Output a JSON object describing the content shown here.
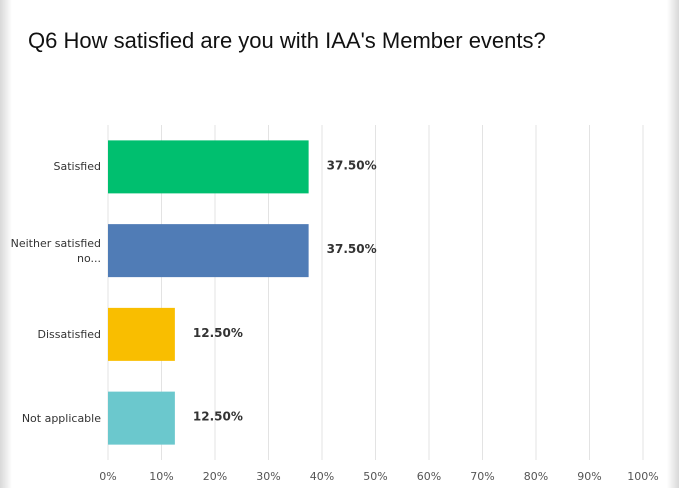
{
  "chart_data": {
    "type": "bar",
    "orientation": "horizontal",
    "title": "Q6 How satisfied are you with IAA's Member events?",
    "categories": [
      "Satisfied",
      "Neither satisfied no...",
      "Dissatisfied",
      "Not applicable"
    ],
    "values": [
      37.5,
      37.5,
      12.5,
      12.5
    ],
    "value_labels": [
      "37.50%",
      "37.50%",
      "12.50%",
      "12.50%"
    ],
    "colors": [
      "#00bf6f",
      "#507cb6",
      "#f9be00",
      "#6bc8cd"
    ],
    "xlim": [
      0,
      100
    ],
    "xticks": [
      {
        "value": 0,
        "label": "0%"
      },
      {
        "value": 10,
        "label": "10%"
      },
      {
        "value": 20,
        "label": "20%"
      },
      {
        "value": 30,
        "label": "30%"
      },
      {
        "value": 40,
        "label": "40%"
      },
      {
        "value": 50,
        "label": "50%"
      },
      {
        "value": 60,
        "label": "60%"
      },
      {
        "value": 70,
        "label": "70%"
      },
      {
        "value": 80,
        "label": "80%"
      },
      {
        "value": 90,
        "label": "90%"
      },
      {
        "value": 100,
        "label": "100%"
      }
    ],
    "grid": true
  }
}
